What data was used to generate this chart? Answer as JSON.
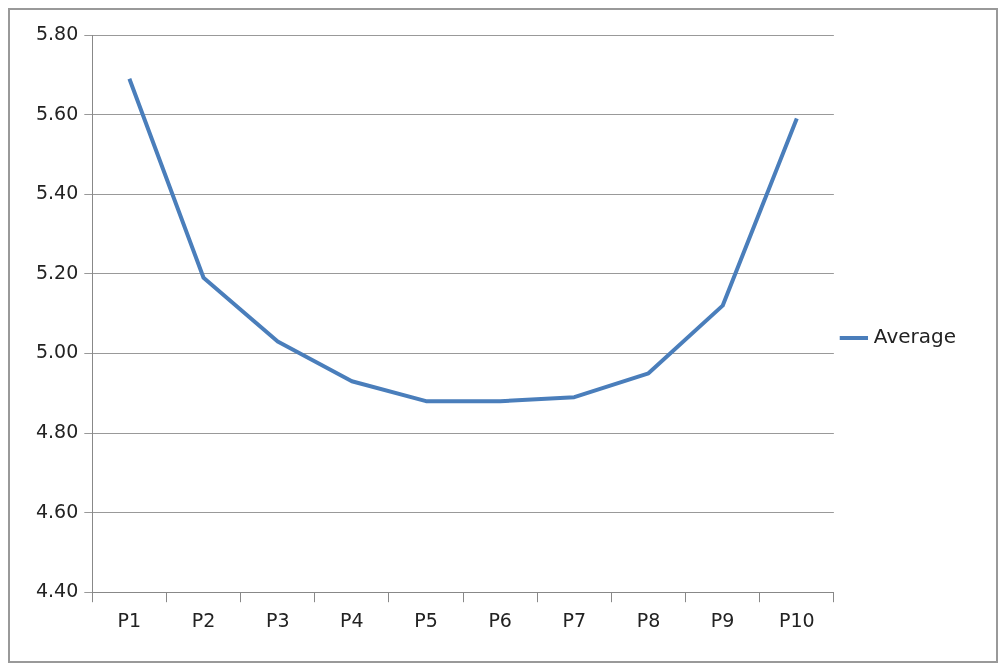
{
  "chart_data": {
    "type": "line",
    "categories": [
      "P1",
      "P2",
      "P3",
      "P4",
      "P5",
      "P6",
      "P7",
      "P8",
      "P9",
      "P10"
    ],
    "series": [
      {
        "name": "Average",
        "color": "#4a7ebb",
        "values": [
          5.69,
          5.19,
          5.03,
          4.93,
          4.88,
          4.88,
          4.89,
          4.95,
          5.12,
          5.59
        ]
      }
    ],
    "ylim": [
      4.4,
      5.8
    ],
    "yticks": [
      {
        "value": 4.4,
        "label": "4.40"
      },
      {
        "value": 4.6,
        "label": "4.60"
      },
      {
        "value": 4.8,
        "label": "4.80"
      },
      {
        "value": 5.0,
        "label": "5.00"
      },
      {
        "value": 5.2,
        "label": "5.20"
      },
      {
        "value": 5.4,
        "label": "5.40"
      },
      {
        "value": 5.6,
        "label": "5.60"
      },
      {
        "value": 5.8,
        "label": "5.80"
      }
    ],
    "grid": "y",
    "legend": "right",
    "marker": "none",
    "line_style": "solid"
  }
}
